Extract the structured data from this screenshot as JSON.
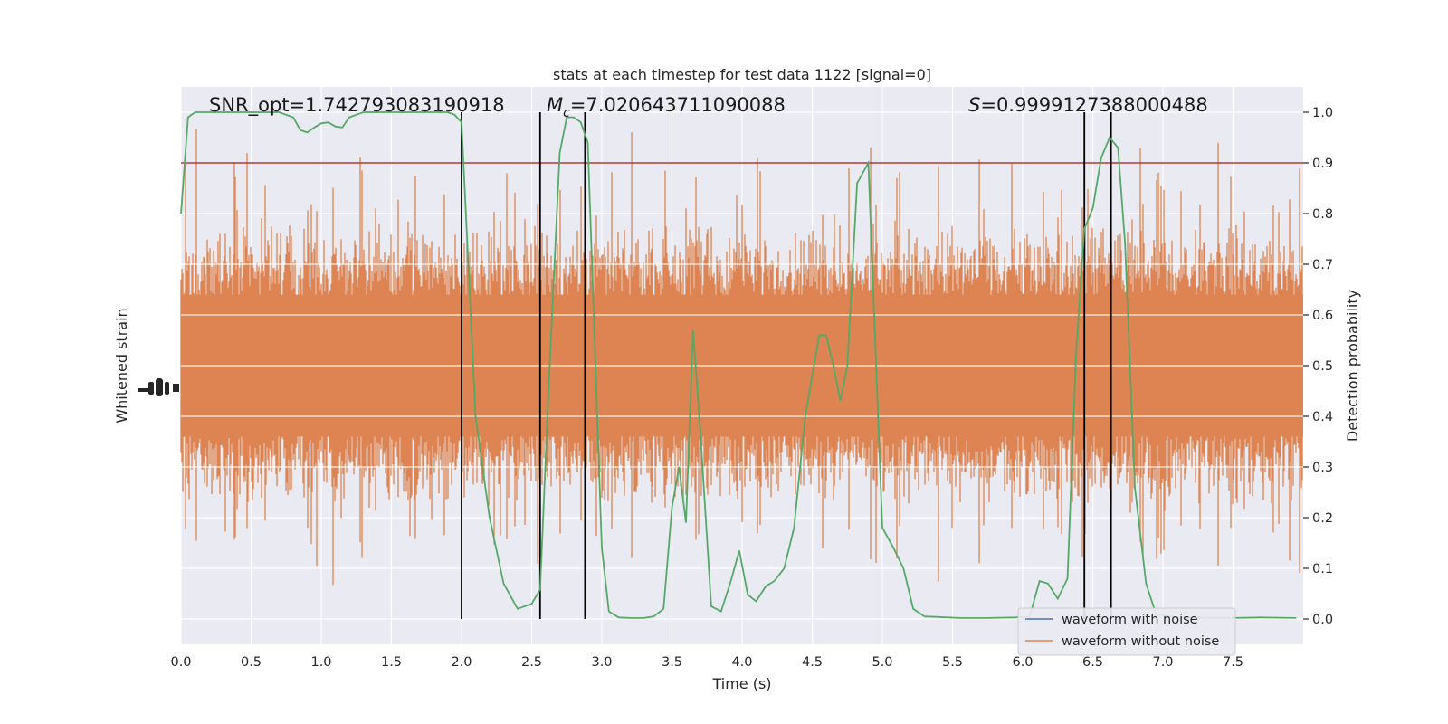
{
  "chart_data": {
    "type": "line",
    "title": "stats at each timestep for test data 1122 [signal=0]",
    "xlabel": "Time (s)",
    "ylabel_left": "Whitened strain",
    "ylabel_right": "Detection probability",
    "xlim": [
      0,
      8
    ],
    "ylim_right": [
      -0.05,
      1.05
    ],
    "x_ticks": [
      0.0,
      0.5,
      1.0,
      1.5,
      2.0,
      2.5,
      3.0,
      3.5,
      4.0,
      4.5,
      5.0,
      5.5,
      6.0,
      6.5,
      7.0,
      7.5
    ],
    "x_tick_labels": [
      "0.0",
      "0.5",
      "1.0",
      "1.5",
      "2.0",
      "2.5",
      "3.0",
      "3.5",
      "4.0",
      "4.5",
      "5.0",
      "5.5",
      "6.0",
      "6.5",
      "7.0",
      "7.5"
    ],
    "y_ticks_right": [
      0.0,
      0.1,
      0.2,
      0.3,
      0.4,
      0.5,
      0.6,
      0.7,
      0.8,
      0.9,
      1.0
    ],
    "y_tick_labels_right": [
      "0.0",
      "0.1",
      "0.2",
      "0.3",
      "0.4",
      "0.5",
      "0.6",
      "0.7",
      "0.8",
      "0.9",
      "1.0"
    ],
    "grid": true,
    "annotations": {
      "snr": "SNR_opt=1.742793083190918",
      "mc_symbol": "M",
      "mc_sub": "c",
      "mc_value": "=7.020643711090088",
      "s_symbol": "S",
      "s_value": "=0.9999127388000488"
    },
    "threshold": 0.9,
    "vertical_lines_x": [
      2.0,
      2.56,
      2.88,
      6.44,
      6.63
    ],
    "legend_position": "lower-right",
    "series": [
      {
        "name": "waveform with noise",
        "color": "#4c72b0",
        "x": [],
        "y": []
      },
      {
        "name": "waveform without noise",
        "color": "#dd8452",
        "noise_band_y": [
          0.0,
          1.0
        ]
      },
      {
        "color": "#55a868",
        "x": [
          0.0,
          0.05,
          0.1,
          0.2,
          0.3,
          0.4,
          0.5,
          0.6,
          0.7,
          0.8,
          0.85,
          0.9,
          0.95,
          1.0,
          1.05,
          1.1,
          1.15,
          1.2,
          1.25,
          1.3,
          1.4,
          1.5,
          1.6,
          1.7,
          1.8,
          1.9,
          1.95,
          2.0,
          2.1,
          2.2,
          2.3,
          2.4,
          2.5,
          2.56,
          2.62,
          2.7,
          2.75,
          2.8,
          2.85,
          2.9,
          3.0,
          3.05,
          3.12,
          3.2,
          3.3,
          3.37,
          3.44,
          3.5,
          3.55,
          3.6,
          3.65,
          3.7,
          3.78,
          3.85,
          3.92,
          3.98,
          4.04,
          4.1,
          4.17,
          4.23,
          4.3,
          4.37,
          4.45,
          4.5,
          4.55,
          4.6,
          4.65,
          4.7,
          4.75,
          4.82,
          4.9,
          5.0,
          5.08,
          5.15,
          5.22,
          5.3,
          5.4,
          5.55,
          5.75,
          5.95,
          6.05,
          6.12,
          6.18,
          6.25,
          6.32,
          6.38,
          6.44,
          6.5,
          6.56,
          6.62,
          6.68,
          6.73,
          6.8,
          6.88,
          6.95,
          7.1,
          7.3,
          7.5,
          7.7,
          7.95
        ],
        "y": [
          0.8,
          0.99,
          1.0,
          1.0,
          1.0,
          1.0,
          1.0,
          1.0,
          1.0,
          0.99,
          0.965,
          0.96,
          0.97,
          0.978,
          0.98,
          0.972,
          0.97,
          0.99,
          0.995,
          1.0,
          1.0,
          1.0,
          1.0,
          1.0,
          1.0,
          1.0,
          0.995,
          0.98,
          0.4,
          0.2,
          0.07,
          0.02,
          0.03,
          0.058,
          0.45,
          0.92,
          0.99,
          0.99,
          0.98,
          0.94,
          0.14,
          0.015,
          0.003,
          0.002,
          0.002,
          0.005,
          0.02,
          0.22,
          0.3,
          0.19,
          0.57,
          0.38,
          0.025,
          0.015,
          0.075,
          0.135,
          0.048,
          0.035,
          0.065,
          0.075,
          0.1,
          0.18,
          0.4,
          0.48,
          0.56,
          0.56,
          0.5,
          0.43,
          0.5,
          0.86,
          0.9,
          0.18,
          0.14,
          0.1,
          0.02,
          0.005,
          0.004,
          0.002,
          0.002,
          0.003,
          0.005,
          0.075,
          0.07,
          0.04,
          0.08,
          0.52,
          0.77,
          0.81,
          0.91,
          0.95,
          0.93,
          0.74,
          0.26,
          0.07,
          0.01,
          0.003,
          0.002,
          0.002,
          0.003,
          0.002
        ]
      }
    ]
  }
}
